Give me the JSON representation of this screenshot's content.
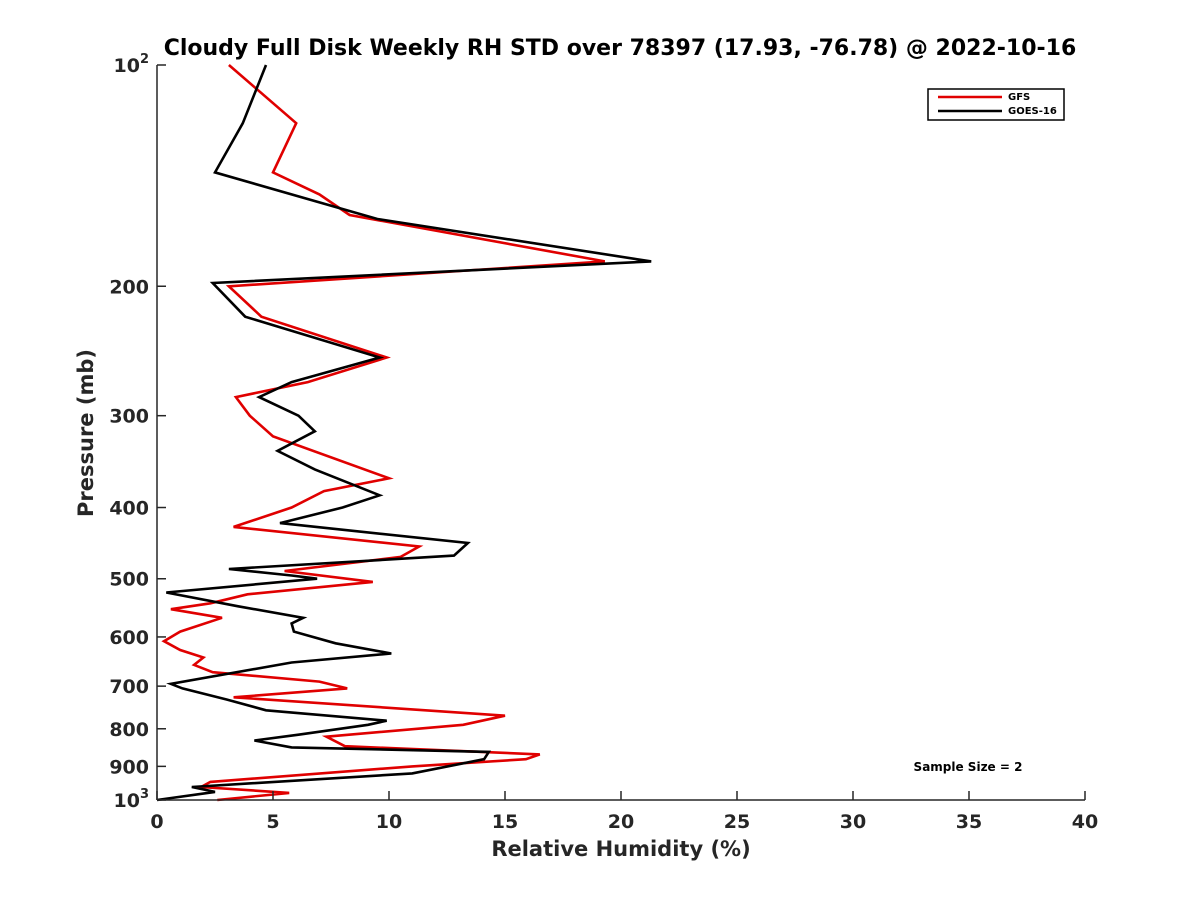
{
  "chart_data": {
    "type": "line",
    "title": "Cloudy Full Disk Weekly RH STD over 78397 (17.93, -76.78) @ 2022-10-16",
    "xlabel": "Relative Humidity (%)",
    "ylabel": "Pressure (mb)",
    "xlim": [
      0,
      40
    ],
    "ylim": [
      100,
      1000
    ],
    "yscale": "log",
    "y_reversed": true,
    "x_ticks": [
      "0",
      "5",
      "10",
      "15",
      "20",
      "25",
      "30",
      "35",
      "40"
    ],
    "y_ticks": [
      {
        "value": 100,
        "label": "10",
        "sup": "2"
      },
      {
        "value": 200,
        "label": "200",
        "sup": ""
      },
      {
        "value": 300,
        "label": "300",
        "sup": ""
      },
      {
        "value": 400,
        "label": "400",
        "sup": ""
      },
      {
        "value": 500,
        "label": "500",
        "sup": ""
      },
      {
        "value": 600,
        "label": "600",
        "sup": ""
      },
      {
        "value": 700,
        "label": "700",
        "sup": ""
      },
      {
        "value": 800,
        "label": "800",
        "sup": ""
      },
      {
        "value": 900,
        "label": "900",
        "sup": ""
      },
      {
        "value": 1000,
        "label": "10",
        "sup": "3"
      }
    ],
    "grid": false,
    "legend_position": "top-right",
    "annotation": "Sample Size = 2",
    "series": [
      {
        "name": "GFS",
        "color": "#e00000",
        "points": [
          [
            3.1,
            100
          ],
          [
            6.0,
            120
          ],
          [
            5.0,
            140
          ],
          [
            7.0,
            150
          ],
          [
            8.3,
            160
          ],
          [
            19.3,
            185
          ],
          [
            3.1,
            200
          ],
          [
            4.5,
            220
          ],
          [
            9.9,
            250
          ],
          [
            6.5,
            270
          ],
          [
            3.4,
            283
          ],
          [
            4.0,
            300
          ],
          [
            5.0,
            320
          ],
          [
            10.0,
            365
          ],
          [
            7.2,
            380
          ],
          [
            5.8,
            400
          ],
          [
            3.3,
            425
          ],
          [
            11.3,
            452
          ],
          [
            10.5,
            467
          ],
          [
            5.5,
            488
          ],
          [
            9.3,
            505
          ],
          [
            3.9,
            525
          ],
          [
            2.3,
            540
          ],
          [
            0.6,
            550
          ],
          [
            2.8,
            565
          ],
          [
            1.0,
            590
          ],
          [
            0.3,
            608
          ],
          [
            1.0,
            625
          ],
          [
            2.0,
            640
          ],
          [
            1.6,
            655
          ],
          [
            2.4,
            670
          ],
          [
            7.0,
            690
          ],
          [
            8.2,
            705
          ],
          [
            3.3,
            725
          ],
          [
            15.0,
            768
          ],
          [
            13.2,
            790
          ],
          [
            7.3,
            820
          ],
          [
            8.1,
            845
          ],
          [
            16.5,
            867
          ],
          [
            15.9,
            880
          ],
          [
            11.0,
            900
          ],
          [
            2.3,
            945
          ],
          [
            1.9,
            960
          ],
          [
            5.7,
            978
          ],
          [
            2.6,
            1000
          ]
        ]
      },
      {
        "name": "GOES-16",
        "color": "#000000",
        "points": [
          [
            4.7,
            100
          ],
          [
            3.7,
            120
          ],
          [
            2.5,
            140
          ],
          [
            9.5,
            162
          ],
          [
            21.3,
            185
          ],
          [
            2.4,
            198
          ],
          [
            3.8,
            220
          ],
          [
            9.6,
            250
          ],
          [
            5.8,
            270
          ],
          [
            4.4,
            283
          ],
          [
            6.1,
            300
          ],
          [
            6.8,
            315
          ],
          [
            5.2,
            335
          ],
          [
            6.8,
            355
          ],
          [
            9.6,
            385
          ],
          [
            8.0,
            400
          ],
          [
            5.3,
            420
          ],
          [
            13.4,
            447
          ],
          [
            12.8,
            465
          ],
          [
            3.1,
            485
          ],
          [
            5.8,
            495
          ],
          [
            6.9,
            500
          ],
          [
            0.4,
            522
          ],
          [
            3.5,
            545
          ],
          [
            6.3,
            565
          ],
          [
            5.8,
            575
          ],
          [
            5.9,
            590
          ],
          [
            7.7,
            612
          ],
          [
            10.1,
            632
          ],
          [
            5.8,
            650
          ],
          [
            0.6,
            695
          ],
          [
            1.1,
            705
          ],
          [
            3.0,
            730
          ],
          [
            4.7,
            755
          ],
          [
            9.9,
            780
          ],
          [
            9.1,
            790
          ],
          [
            6.1,
            815
          ],
          [
            4.2,
            830
          ],
          [
            5.8,
            848
          ],
          [
            14.3,
            860
          ],
          [
            14.1,
            880
          ],
          [
            11.0,
            920
          ],
          [
            1.5,
            960
          ],
          [
            2.5,
            975
          ],
          [
            0.0,
            1000
          ]
        ]
      }
    ]
  }
}
